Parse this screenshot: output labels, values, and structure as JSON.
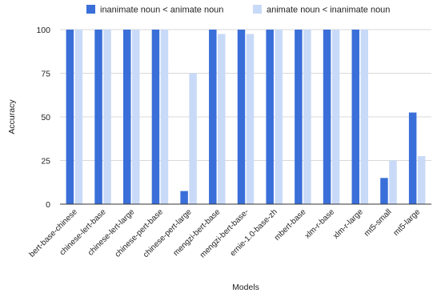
{
  "chart_data": {
    "type": "bar",
    "categories": [
      "bert-base-chinese",
      "chinese-lert-base",
      "chinese-lert-large",
      "chinese-pert-base",
      "chinese-pert-large",
      "mengzi-bert-base",
      "mengzi-bert-base-",
      "ernie-1.0-base-zh",
      "mbert-base",
      "xlm-r-base",
      "xlm-r-large",
      "mt5-small",
      "mt5-large"
    ],
    "series": [
      {
        "name": "inanimate noun < animate noun",
        "color": "#3a6fd9",
        "values": [
          100,
          100,
          100,
          100,
          7.5,
          100,
          100,
          100,
          100,
          100,
          100,
          15,
          52.5
        ]
      },
      {
        "name": "animate noun < inanimate noun",
        "color": "#c9daf8",
        "values": [
          100,
          100,
          100,
          100,
          75,
          97.5,
          97.5,
          100,
          100,
          100,
          100,
          25,
          27.5
        ]
      }
    ],
    "title": "",
    "xlabel": "Models",
    "ylabel": "Accuracy",
    "ylim": [
      0,
      100
    ],
    "yticks": [
      "0",
      "25",
      "50",
      "75",
      "100"
    ],
    "grid": true,
    "legend_position": "top"
  }
}
